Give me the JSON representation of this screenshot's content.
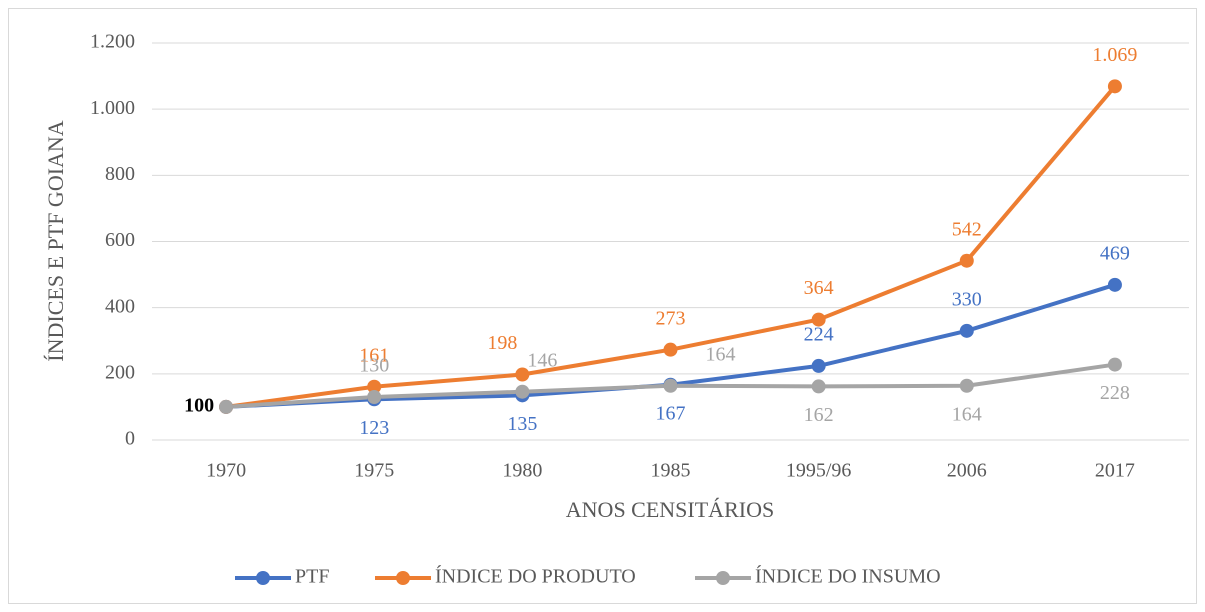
{
  "chart_data": {
    "type": "line",
    "y_label": "ÍNDICES E PTF GOIANA",
    "x_label": "ANOS CENSITÁRIOS",
    "categories": [
      "1970",
      "1975",
      "1980",
      "1985",
      "1995/96",
      "2006",
      "2017"
    ],
    "series": [
      {
        "name": "PTF",
        "color": "#4472c4",
        "values": [
          100,
          123,
          135,
          167,
          224,
          330,
          469
        ],
        "value_labels": [
          "100",
          "123",
          "135",
          "167",
          "224",
          "330",
          "469"
        ]
      },
      {
        "name": "ÍNDICE DO PRODUTO",
        "color": "#ed7d31",
        "values": [
          100,
          161,
          198,
          273,
          364,
          542,
          1069
        ],
        "value_labels": [
          null,
          "161",
          "198",
          "273",
          "364",
          "542",
          "1.069"
        ]
      },
      {
        "name": "ÍNDICE DO INSUMO",
        "color": "#a5a5a5",
        "values": [
          100,
          130,
          146,
          164,
          162,
          164,
          228
        ],
        "value_labels": [
          null,
          "130",
          "146",
          "164",
          "162",
          "164",
          "228"
        ]
      }
    ],
    "ylim": [
      0,
      1200
    ],
    "yticks": [
      0,
      200,
      400,
      600,
      800,
      {
        "value": 1000,
        "label": "1.000"
      },
      {
        "value": 1200,
        "label": "1.200"
      }
    ],
    "grid": true,
    "legend": "bottom"
  }
}
